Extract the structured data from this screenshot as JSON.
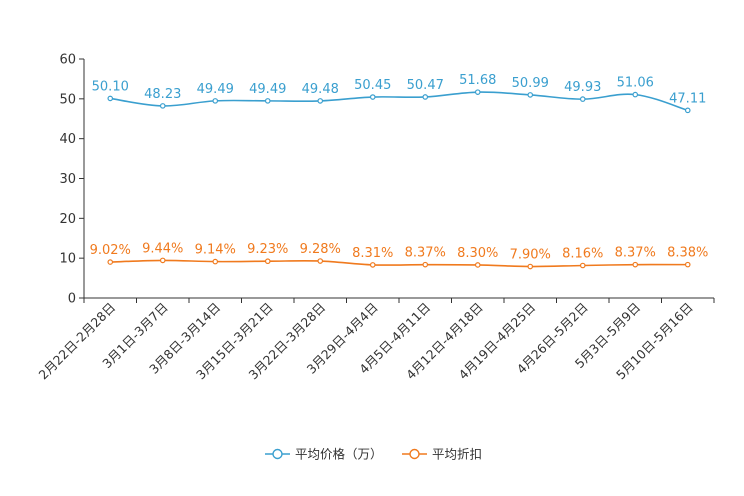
{
  "chart_data": {
    "type": "line",
    "categories": [
      "2月22日-2月28日",
      "3月1日-3月7日",
      "3月8日-3月14日",
      "3月15日-3月21日",
      "3月22日-3月28日",
      "3月29日-4月4日",
      "4月5日-4月11日",
      "4月12日-4月18日",
      "4月19日-4月25日",
      "4月26日-5月2日",
      "5月3日-5月9日",
      "5月10日-5月16日"
    ],
    "ylim": [
      0,
      60
    ],
    "yticks": [
      0,
      10,
      20,
      30,
      40,
      50,
      60
    ],
    "series": [
      {
        "name": "平均价格（万）",
        "color": "#3a9fcf",
        "values": [
          50.1,
          48.23,
          49.49,
          49.49,
          49.48,
          50.45,
          50.47,
          51.68,
          50.99,
          49.93,
          51.06,
          47.11
        ],
        "labels": [
          "50.10",
          "48.23",
          "49.49",
          "49.49",
          "49.48",
          "50.45",
          "50.47",
          "51.68",
          "50.99",
          "49.93",
          "51.06",
          "47.11"
        ]
      },
      {
        "name": "平均折扣",
        "color": "#f07a1e",
        "values": [
          9.02,
          9.44,
          9.14,
          9.23,
          9.28,
          8.31,
          8.37,
          8.3,
          7.9,
          8.16,
          8.37,
          8.38
        ],
        "labels": [
          "9.02%",
          "9.44%",
          "9.14%",
          "9.23%",
          "9.28%",
          "8.31%",
          "8.37%",
          "8.30%",
          "7.90%",
          "8.16%",
          "8.37%",
          "8.38%"
        ]
      }
    ],
    "legend_position": "bottom-center",
    "grid": false
  }
}
